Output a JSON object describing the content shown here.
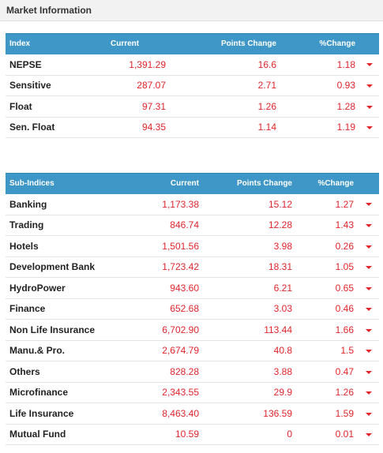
{
  "panel": {
    "title": "Market Information"
  },
  "index_table": {
    "columns": [
      "Index",
      "Current",
      "Points Change",
      "%Change"
    ],
    "rows": [
      {
        "name": "NEPSE",
        "current": "1,391.29",
        "points_change": "16.6",
        "percent_change": "1.18",
        "trend_icon": "down-arrow"
      },
      {
        "name": "Sensitive",
        "current": "287.07",
        "points_change": "2.71",
        "percent_change": "0.93",
        "trend_icon": "down-arrow"
      },
      {
        "name": "Float",
        "current": "97.31",
        "points_change": "1.26",
        "percent_change": "1.28",
        "trend_icon": "down-arrow"
      },
      {
        "name": "Sen. Float",
        "current": "94.35",
        "points_change": "1.14",
        "percent_change": "1.19",
        "trend_icon": "down-arrow"
      }
    ]
  },
  "subindex_table": {
    "columns": [
      "Sub-Indices",
      "Current",
      "Points Change",
      "%Change"
    ],
    "rows": [
      {
        "name": "Banking",
        "current": "1,173.38",
        "points_change": "15.12",
        "percent_change": "1.27",
        "trend_icon": "down-arrow"
      },
      {
        "name": "Trading",
        "current": "846.74",
        "points_change": "12.28",
        "percent_change": "1.43",
        "trend_icon": "down-arrow"
      },
      {
        "name": "Hotels",
        "current": "1,501.56",
        "points_change": "3.98",
        "percent_change": "0.26",
        "trend_icon": "down-arrow"
      },
      {
        "name": "Development Bank",
        "current": "1,723.42",
        "points_change": "18.31",
        "percent_change": "1.05",
        "trend_icon": "down-arrow"
      },
      {
        "name": "HydroPower",
        "current": "943.60",
        "points_change": "6.21",
        "percent_change": "0.65",
        "trend_icon": "down-arrow"
      },
      {
        "name": "Finance",
        "current": "652.68",
        "points_change": "3.03",
        "percent_change": "0.46",
        "trend_icon": "down-arrow"
      },
      {
        "name": "Non Life Insurance",
        "current": "6,702.90",
        "points_change": "113.44",
        "percent_change": "1.66",
        "trend_icon": "down-arrow"
      },
      {
        "name": "Manu.& Pro.",
        "current": "2,674.79",
        "points_change": "40.8",
        "percent_change": "1.5",
        "trend_icon": "down-arrow"
      },
      {
        "name": "Others",
        "current": "828.28",
        "points_change": "3.88",
        "percent_change": "0.47",
        "trend_icon": "down-arrow"
      },
      {
        "name": "Microfinance",
        "current": "2,343.55",
        "points_change": "29.9",
        "percent_change": "1.26",
        "trend_icon": "down-arrow"
      },
      {
        "name": "Life Insurance",
        "current": "8,463.40",
        "points_change": "136.59",
        "percent_change": "1.59",
        "trend_icon": "down-arrow"
      },
      {
        "name": "Mutual Fund",
        "current": "10.59",
        "points_change": "0",
        "percent_change": "0.01",
        "trend_icon": "down-arrow"
      }
    ]
  },
  "colors": {
    "header_bg": "#3e97c7",
    "value_red": "#e0252b",
    "panel_bg": "#f2f2f2"
  }
}
